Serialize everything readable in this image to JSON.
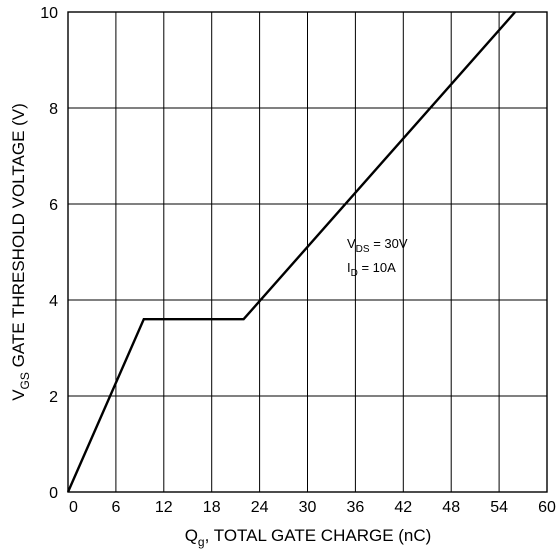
{
  "chart_data": {
    "type": "line",
    "title": "",
    "xlabel": {
      "main": "Q",
      "sub": "g",
      "rest": ", TOTAL GATE CHARGE (nC)"
    },
    "ylabel": {
      "main": "V",
      "sub": "GS",
      "rest": " GATE THRESHOLD VOLTAGE (V)"
    },
    "xlim": [
      0,
      60
    ],
    "ylim": [
      0,
      10
    ],
    "x_ticks": [
      "0",
      "6",
      "12",
      "18",
      "24",
      "30",
      "36",
      "42",
      "48",
      "54",
      "60"
    ],
    "y_ticks": [
      "0",
      "2",
      "4",
      "6",
      "8",
      "10"
    ],
    "grid": true,
    "series": [
      {
        "x": [
          0,
          9.5,
          22,
          56
        ],
        "y": [
          0,
          3.6,
          3.6,
          10
        ]
      }
    ],
    "annotations": [
      {
        "main": "V",
        "sub": "DS",
        "rest": " = 30V"
      },
      {
        "main": "I",
        "sub": "D",
        "rest": " = 10A"
      }
    ]
  }
}
